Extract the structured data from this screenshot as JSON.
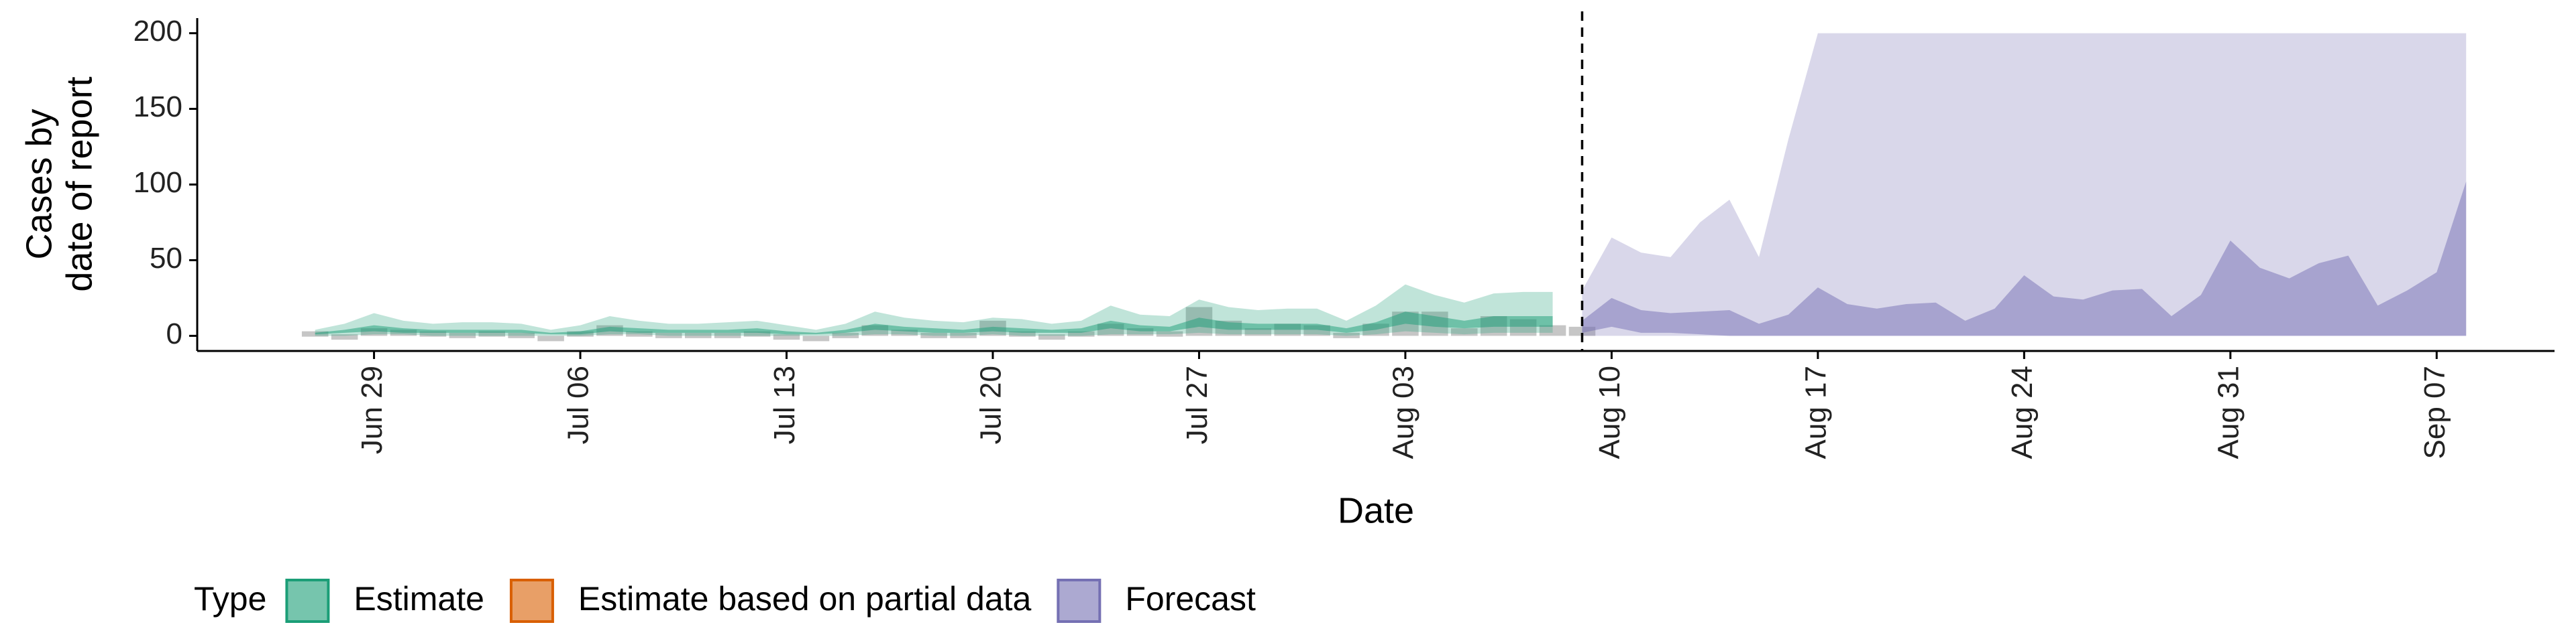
{
  "chart_data": {
    "type": "ribbon",
    "xlabel": "Date",
    "ylabel": [
      "Cases by",
      "date of report"
    ],
    "legend_title": "Type",
    "xlim": [
      "Jun 23",
      "Sep 11"
    ],
    "xticks": [
      "Jun 29",
      "Jul 06",
      "Jul 13",
      "Jul 20",
      "Jul 27",
      "Aug 03",
      "Aug 10",
      "Aug 17",
      "Aug 24",
      "Aug 31",
      "Sep 07"
    ],
    "ylim": [
      -10,
      210
    ],
    "yticks": [
      0,
      50,
      100,
      150,
      200
    ],
    "grid": false,
    "vline": "Aug 09",
    "x": [
      "Jun 27",
      "Jun 28",
      "Jun 29",
      "Jun 30",
      "Jul 01",
      "Jul 02",
      "Jul 03",
      "Jul 04",
      "Jul 05",
      "Jul 06",
      "Jul 07",
      "Jul 08",
      "Jul 09",
      "Jul 10",
      "Jul 11",
      "Jul 12",
      "Jul 13",
      "Jul 14",
      "Jul 15",
      "Jul 16",
      "Jul 17",
      "Jul 18",
      "Jul 19",
      "Jul 20",
      "Jul 21",
      "Jul 22",
      "Jul 23",
      "Jul 24",
      "Jul 25",
      "Jul 26",
      "Jul 27",
      "Jul 28",
      "Jul 29",
      "Jul 30",
      "Jul 31",
      "Aug 01",
      "Aug 02",
      "Aug 03",
      "Aug 04",
      "Aug 05",
      "Aug 06",
      "Aug 07",
      "Aug 08",
      "Aug 09",
      "Aug 10",
      "Aug 11",
      "Aug 12",
      "Aug 13",
      "Aug 14",
      "Aug 15",
      "Aug 16",
      "Aug 17",
      "Aug 18",
      "Aug 19",
      "Aug 20",
      "Aug 21",
      "Aug 22",
      "Aug 23",
      "Aug 24",
      "Aug 25",
      "Aug 26",
      "Aug 27",
      "Aug 28",
      "Aug 29",
      "Aug 30",
      "Aug 31",
      "Sep 01",
      "Sep 02",
      "Sep 03",
      "Sep 04",
      "Sep 05",
      "Sep 06",
      "Sep 07",
      "Sep 08"
    ],
    "reported": {
      "color": "#808080",
      "values": [
        3,
        1,
        5,
        4,
        3,
        2,
        3,
        2,
        0,
        3,
        7,
        3,
        2,
        2,
        2,
        3,
        1,
        0,
        2,
        7,
        4,
        2,
        2,
        10,
        3,
        1,
        3,
        8,
        5,
        3,
        19,
        10,
        5,
        8,
        7,
        2,
        8,
        16,
        16,
        5,
        13,
        11,
        7,
        6,
        null,
        null,
        null,
        null,
        null,
        null,
        null,
        null,
        null,
        null,
        null,
        null,
        null,
        null,
        null,
        null,
        null,
        null,
        null,
        null,
        null,
        null,
        null,
        null,
        null,
        null,
        null,
        null,
        null,
        null
      ]
    },
    "series": [
      {
        "name": "Estimate",
        "color": "#1b9e77",
        "bands": [
          {
            "lower": [
              0,
              0,
              1,
              1,
              0,
              0,
              0,
              0,
              0,
              0,
              1,
              1,
              0,
              0,
              0,
              0,
              0,
              0,
              0,
              1,
              1,
              0,
              0,
              1,
              0,
              0,
              0,
              1,
              1,
              1,
              2,
              1,
              1,
              1,
              1,
              0,
              1,
              3,
              2,
              1,
              2,
              2,
              2,
              null,
              null,
              null,
              null,
              null,
              null,
              null,
              null,
              null,
              null,
              null,
              null,
              null,
              null,
              null,
              null,
              null,
              null,
              null,
              null,
              null,
              null,
              null,
              null,
              null,
              null,
              null,
              null,
              null,
              null,
              null
            ],
            "upper": [
              4,
              8,
              15,
              10,
              8,
              9,
              9,
              8,
              4,
              7,
              13,
              10,
              8,
              8,
              9,
              10,
              7,
              4,
              8,
              16,
              12,
              10,
              9,
              12,
              11,
              8,
              10,
              20,
              14,
              13,
              24,
              19,
              17,
              18,
              18,
              10,
              20,
              34,
              27,
              22,
              28,
              29,
              29,
              null,
              null,
              null,
              null,
              null,
              null,
              null,
              null,
              null,
              null,
              null,
              null,
              null,
              null,
              null,
              null,
              null,
              null,
              null,
              null,
              null,
              null,
              null,
              null,
              null,
              null,
              null,
              null,
              null,
              null,
              null
            ]
          },
          {
            "lower": [
              1,
              2,
              3,
              2,
              2,
              2,
              2,
              2,
              1,
              1,
              3,
              2,
              2,
              2,
              2,
              2,
              1,
              1,
              2,
              4,
              3,
              2,
              2,
              3,
              2,
              2,
              2,
              5,
              3,
              3,
              6,
              4,
              4,
              4,
              4,
              2,
              4,
              8,
              6,
              5,
              6,
              6,
              6,
              null,
              null,
              null,
              null,
              null,
              null,
              null,
              null,
              null,
              null,
              null,
              null,
              null,
              null,
              null,
              null,
              null,
              null,
              null,
              null,
              null,
              null,
              null,
              null,
              null,
              null,
              null,
              null,
              null,
              null,
              null
            ],
            "upper": [
              2,
              4,
              7,
              5,
              4,
              4,
              4,
              4,
              2,
              3,
              6,
              5,
              4,
              4,
              4,
              5,
              3,
              2,
              4,
              8,
              6,
              5,
              4,
              6,
              5,
              4,
              5,
              10,
              7,
              6,
              12,
              9,
              8,
              8,
              8,
              5,
              9,
              16,
              13,
              10,
              13,
              13,
              13,
              null,
              null,
              null,
              null,
              null,
              null,
              null,
              null,
              null,
              null,
              null,
              null,
              null,
              null,
              null,
              null,
              null,
              null,
              null,
              null,
              null,
              null,
              null,
              null,
              null,
              null,
              null,
              null,
              null,
              null,
              null
            ]
          }
        ]
      },
      {
        "name": "Estimate based on partial data",
        "color": "#d95f02",
        "bands": []
      },
      {
        "name": "Forecast",
        "color": "#7570b3",
        "bands": [
          {
            "lower": [
              null,
              null,
              null,
              null,
              null,
              null,
              null,
              null,
              null,
              null,
              null,
              null,
              null,
              null,
              null,
              null,
              null,
              null,
              null,
              null,
              null,
              null,
              null,
              null,
              null,
              null,
              null,
              null,
              null,
              null,
              null,
              null,
              null,
              null,
              null,
              null,
              null,
              null,
              null,
              null,
              null,
              null,
              null,
              0,
              0,
              0,
              0,
              0,
              0,
              0,
              0,
              0,
              0,
              0,
              0,
              0,
              0,
              0,
              0,
              0,
              0,
              0,
              0,
              0,
              0,
              0,
              0,
              0,
              0,
              0,
              0,
              0,
              0,
              0
            ],
            "upper": [
              null,
              null,
              null,
              null,
              null,
              null,
              null,
              null,
              null,
              null,
              null,
              null,
              null,
              null,
              null,
              null,
              null,
              null,
              null,
              null,
              null,
              null,
              null,
              null,
              null,
              null,
              null,
              null,
              null,
              null,
              null,
              null,
              null,
              null,
              null,
              null,
              null,
              null,
              null,
              null,
              null,
              null,
              null,
              30,
              65,
              55,
              52,
              75,
              90,
              52,
              130,
              200,
              200,
              200,
              200,
              200,
              200,
              200,
              200,
              200,
              200,
              200,
              200,
              200,
              200,
              200,
              200,
              200,
              200,
              200,
              200,
              200,
              200,
              200
            ]
          },
          {
            "lower": [
              null,
              null,
              null,
              null,
              null,
              null,
              null,
              null,
              null,
              null,
              null,
              null,
              null,
              null,
              null,
              null,
              null,
              null,
              null,
              null,
              null,
              null,
              null,
              null,
              null,
              null,
              null,
              null,
              null,
              null,
              null,
              null,
              null,
              null,
              null,
              null,
              null,
              null,
              null,
              null,
              null,
              null,
              null,
              2,
              6,
              2,
              2,
              1,
              0,
              0,
              0,
              0,
              0,
              0,
              0,
              0,
              0,
              0,
              0,
              0,
              0,
              0,
              0,
              0,
              0,
              0,
              0,
              0,
              0,
              0,
              0,
              0,
              0,
              0
            ],
            "upper": [
              null,
              null,
              null,
              null,
              null,
              null,
              null,
              null,
              null,
              null,
              null,
              null,
              null,
              null,
              null,
              null,
              null,
              null,
              null,
              null,
              null,
              null,
              null,
              null,
              null,
              null,
              null,
              null,
              null,
              null,
              null,
              null,
              null,
              null,
              null,
              null,
              null,
              null,
              null,
              null,
              null,
              null,
              null,
              10,
              25,
              17,
              15,
              16,
              17,
              8,
              14,
              32,
              21,
              18,
              21,
              22,
              10,
              18,
              40,
              26,
              24,
              30,
              31,
              13,
              27,
              63,
              45,
              38,
              48,
              53,
              20,
              30,
              42,
              102
            ]
          }
        ]
      }
    ]
  }
}
